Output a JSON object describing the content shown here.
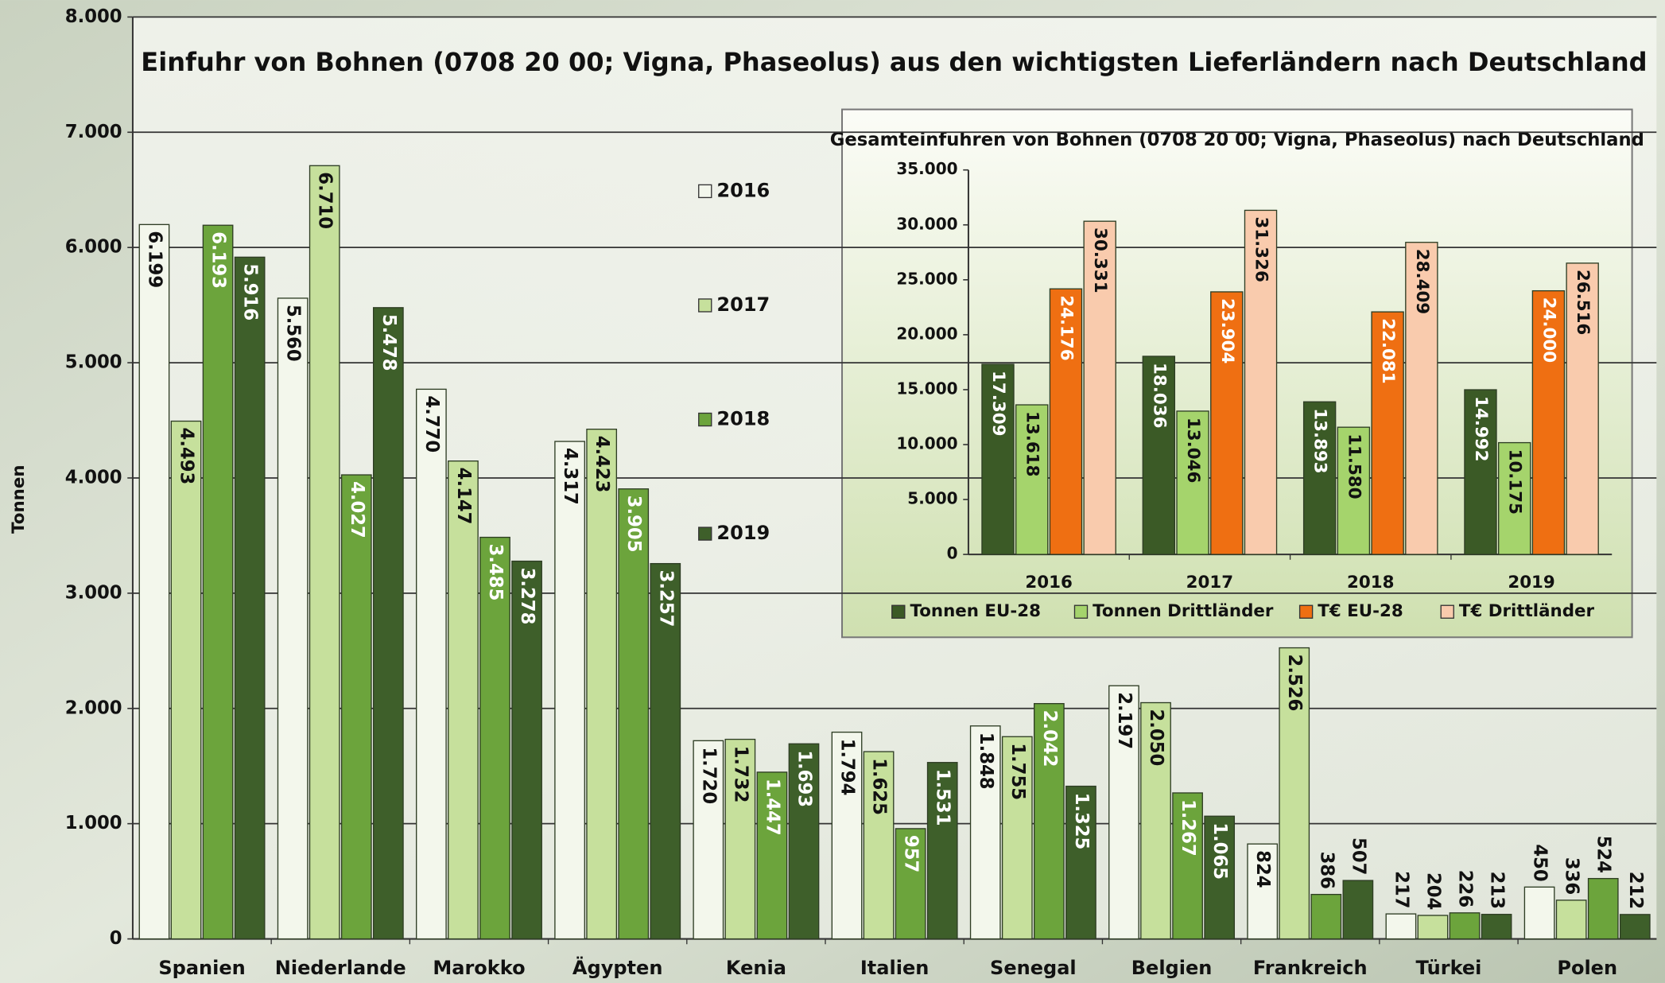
{
  "chart_data": [
    {
      "type": "bar",
      "title": "Einfuhr von  Bohnen (0708 20 00; Vigna, Phaseolus) aus den wichtigsten Lieferländern nach Deutschland",
      "y_label": "Tonnen",
      "categories": [
        "Spanien",
        "Niederlande",
        "Marokko",
        "Ägypten",
        "Kenia",
        "Italien",
        "Senegal",
        "Belgien",
        "Frankreich",
        "Türkei",
        "Polen"
      ],
      "series": [
        {
          "name": "2016",
          "color": "#f3f7ec",
          "values": [
            6199,
            5560,
            4770,
            4317,
            1720,
            1794,
            1848,
            2197,
            824,
            217,
            450
          ],
          "value_labels": [
            "6.199",
            "5.560",
            "4.770",
            "4.317",
            "1.720",
            "1.794",
            "1.848",
            "2.197",
            "824",
            "217",
            "450"
          ]
        },
        {
          "name": "2017",
          "color": "#c6e09c",
          "values": [
            4493,
            6710,
            4147,
            4423,
            1732,
            1625,
            1755,
            2050,
            2526,
            204,
            336
          ],
          "value_labels": [
            "4.493",
            "6.710",
            "4.147",
            "4.423",
            "1.732",
            "1.625",
            "1.755",
            "2.050",
            "2.526",
            "204",
            "336"
          ]
        },
        {
          "name": "2018",
          "color": "#6ca43c",
          "values": [
            6193,
            4027,
            3485,
            3905,
            1447,
            957,
            2042,
            1267,
            386,
            226,
            524
          ],
          "value_labels": [
            "6.193",
            "4.027",
            "3.485",
            "3.905",
            "1.447",
            "957",
            "2.042",
            "1.267",
            "386",
            "226",
            "524"
          ]
        },
        {
          "name": "2019",
          "color": "#3e5f2a",
          "values": [
            5916,
            5478,
            3278,
            3257,
            1693,
            1531,
            1325,
            1065,
            507,
            213,
            212
          ],
          "value_labels": [
            "5.916",
            "5.478",
            "3.278",
            "3.257",
            "1.693",
            "1.531",
            "1.325",
            "1.065",
            "507",
            "213",
            "212"
          ]
        }
      ],
      "ylim": [
        0,
        8000
      ],
      "yticks": [
        0,
        {
          "value": 1000,
          "label": "1.000"
        },
        {
          "value": 2000,
          "label": "2.000"
        },
        {
          "value": 3000,
          "label": "3.000"
        },
        {
          "value": 4000,
          "label": "4.000"
        },
        {
          "value": 5000,
          "label": "5.000"
        },
        {
          "value": 6000,
          "label": "6.000"
        },
        {
          "value": 7000,
          "label": "7.000"
        },
        {
          "value": 8000,
          "label": "8.000"
        }
      ],
      "grid": true,
      "legend": "center"
    },
    {
      "type": "bar",
      "title": "Gesamteinfuhren von  Bohnen (0708 20 00; Vigna, Phaseolus) nach Deutschland",
      "categories": [
        "2016",
        "2017",
        "2018",
        "2019"
      ],
      "series": [
        {
          "name": "Tonnen EU-28",
          "color": "#3b5a26",
          "values": [
            17309,
            18036,
            13893,
            14992
          ],
          "value_labels": [
            "17.309",
            "18.036",
            "13.893",
            "14.992"
          ]
        },
        {
          "name": "Tonnen Drittländer",
          "color": "#a5d46c",
          "values": [
            13618,
            13046,
            11580,
            10175
          ],
          "value_labels": [
            "13.618",
            "13.046",
            "11.580",
            "10.175"
          ]
        },
        {
          "name": "T€ EU-28",
          "color": "#ef6f12",
          "values": [
            24176,
            23904,
            22081,
            24000
          ],
          "value_labels": [
            "24.176",
            "23.904",
            "22.081",
            "24.000"
          ]
        },
        {
          "name": "T€ Drittländer",
          "color": "#f9cbad",
          "values": [
            30331,
            31326,
            28409,
            26516
          ],
          "value_labels": [
            "30.331",
            "31.326",
            "28.409",
            "26.516"
          ]
        }
      ],
      "ylim": [
        0,
        35000
      ],
      "yticks": [
        0,
        {
          "value": 5000,
          "label": "5.000"
        },
        {
          "value": 10000,
          "label": "10.000"
        },
        {
          "value": 15000,
          "label": "15.000"
        },
        {
          "value": 20000,
          "label": "20.000"
        },
        {
          "value": 25000,
          "label": "25.000"
        },
        {
          "value": 30000,
          "label": "30.000"
        },
        {
          "value": 35000,
          "label": "35.000"
        }
      ],
      "grid": false,
      "legend": "bottom"
    }
  ]
}
